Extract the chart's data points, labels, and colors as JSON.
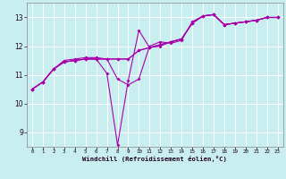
{
  "xlabel": "Windchill (Refroidissement éolien,°C)",
  "bg_color": "#c8eef0",
  "line_color": "#aa00aa",
  "grid_color": "#b0dde0",
  "xlim": [
    -0.5,
    23.5
  ],
  "ylim": [
    8.5,
    13.5
  ],
  "yticks": [
    9,
    10,
    11,
    12,
    13
  ],
  "xticks": [
    0,
    1,
    2,
    3,
    4,
    5,
    6,
    7,
    8,
    9,
    10,
    11,
    12,
    13,
    14,
    15,
    16,
    17,
    18,
    19,
    20,
    21,
    22,
    23
  ],
  "series": [
    [
      10.5,
      10.75,
      11.2,
      11.5,
      11.55,
      11.6,
      11.6,
      11.55,
      10.85,
      10.65,
      10.85,
      12.0,
      12.15,
      12.1,
      12.2,
      12.85,
      13.05,
      13.1,
      12.75,
      12.8,
      12.85,
      12.9,
      13.0,
      13.0
    ],
    [
      10.5,
      10.75,
      11.2,
      11.45,
      11.5,
      11.55,
      11.55,
      11.05,
      8.55,
      10.8,
      12.55,
      11.95,
      12.0,
      12.15,
      12.25,
      12.8,
      13.05,
      13.1,
      12.75,
      12.8,
      12.85,
      12.9,
      13.0,
      13.0
    ],
    [
      10.5,
      10.75,
      11.2,
      11.45,
      11.5,
      11.55,
      11.55,
      11.55,
      11.55,
      11.55,
      11.85,
      11.95,
      12.05,
      12.15,
      12.25,
      12.8,
      13.05,
      13.1,
      12.75,
      12.8,
      12.85,
      12.9,
      13.0,
      13.0
    ],
    [
      10.5,
      10.75,
      11.2,
      11.45,
      11.5,
      11.55,
      11.55,
      11.55,
      11.55,
      11.55,
      11.85,
      11.95,
      12.05,
      12.15,
      12.25,
      12.8,
      13.05,
      13.1,
      12.75,
      12.8,
      12.85,
      12.9,
      13.0,
      13.0
    ]
  ]
}
